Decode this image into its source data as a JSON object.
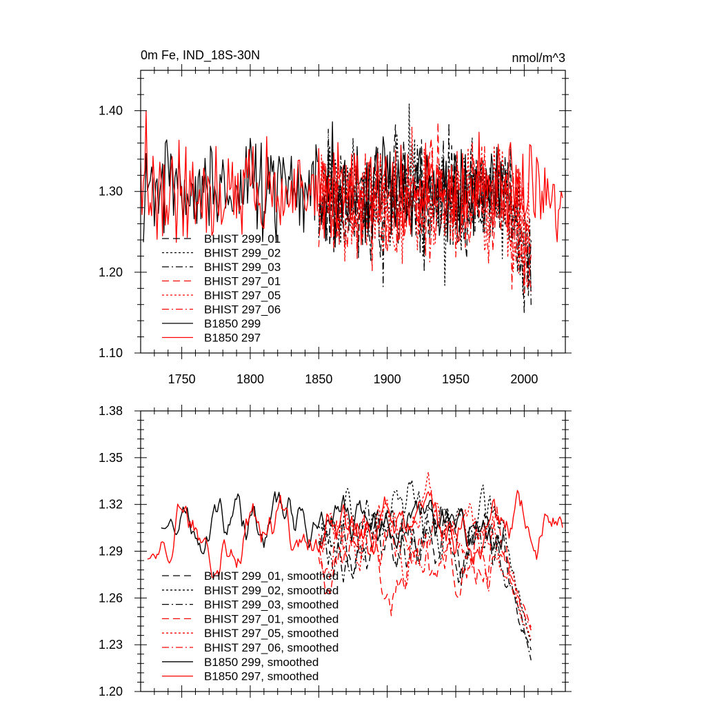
{
  "figure": {
    "title_left": "0m Fe, IND_18S-30N",
    "title_right": "nmol/m^3"
  },
  "chart_data": [
    {
      "type": "line",
      "title": "0m Fe, IND_18S-30N",
      "units": "nmol/m^3",
      "xlim": [
        1720,
        2030
      ],
      "ylim": [
        1.1,
        1.45
      ],
      "xticks": [
        1750,
        1800,
        1850,
        1900,
        1950,
        2000
      ],
      "xtick_labels": [
        "1750",
        "1800",
        "1850",
        "1900",
        "1950",
        "2000"
      ],
      "yticks": [
        1.1,
        1.2,
        1.3,
        1.4
      ],
      "ytick_labels": [
        "1.10",
        "1.20",
        "1.30",
        "1.40"
      ],
      "legend_position": "lower-left",
      "series": [
        {
          "name": "BHIST 299_01",
          "color": "#000000",
          "dash": "dashed",
          "x_start": 1850,
          "x_end": 2005,
          "mean": 1.29,
          "amp": 0.042,
          "seed": 11
        },
        {
          "name": "BHIST 299_02",
          "color": "#000000",
          "dash": "dotted",
          "x_start": 1850,
          "x_end": 2005,
          "mean": 1.3,
          "amp": 0.042,
          "seed": 12
        },
        {
          "name": "BHIST 299_03",
          "color": "#000000",
          "dash": "dashdot",
          "x_start": 1850,
          "x_end": 2005,
          "mean": 1.29,
          "amp": 0.04,
          "seed": 13
        },
        {
          "name": "BHIST 297_01",
          "color": "#ff0000",
          "dash": "dashed",
          "x_start": 1850,
          "x_end": 2005,
          "mean": 1.29,
          "amp": 0.042,
          "seed": 21
        },
        {
          "name": "BHIST 297_05",
          "color": "#ff0000",
          "dash": "dotted",
          "x_start": 1850,
          "x_end": 2005,
          "mean": 1.29,
          "amp": 0.042,
          "seed": 22
        },
        {
          "name": "BHIST 297_06",
          "color": "#ff0000",
          "dash": "dashdot",
          "x_start": 1850,
          "x_end": 2005,
          "mean": 1.29,
          "amp": 0.04,
          "seed": 23
        },
        {
          "name": "B1850 299",
          "color": "#000000",
          "dash": "solid",
          "x_start": 1722,
          "x_end": 1985,
          "mean": 1.305,
          "amp": 0.038,
          "seed": 31
        },
        {
          "name": "B1850 297",
          "color": "#ff0000",
          "dash": "solid",
          "x_start": 1720,
          "x_end": 2028,
          "mean": 1.3,
          "amp": 0.036,
          "seed": 41
        }
      ]
    },
    {
      "type": "line",
      "title": "",
      "xlim": [
        1720,
        2030
      ],
      "ylim": [
        1.2,
        1.38
      ],
      "xticks": [
        1750,
        1800,
        1850,
        1900,
        1950,
        2000
      ],
      "xtick_labels": [],
      "yticks": [
        1.2,
        1.23,
        1.26,
        1.29,
        1.32,
        1.35,
        1.38
      ],
      "ytick_labels": [
        "1.20",
        "1.23",
        "1.26",
        "1.29",
        "1.32",
        "1.35",
        "1.38"
      ],
      "legend_position": "lower-left",
      "series": [
        {
          "name": "BHIST 299_01, smoothed",
          "color": "#000000",
          "dash": "dashed",
          "x_start": 1850,
          "x_end": 2005,
          "mean": 1.3,
          "amp": 0.014,
          "end_value": 1.225,
          "seed": 111
        },
        {
          "name": "BHIST 299_02, smoothed",
          "color": "#000000",
          "dash": "dotted",
          "x_start": 1850,
          "x_end": 2005,
          "mean": 1.31,
          "amp": 0.014,
          "end_value": 1.23,
          "seed": 112
        },
        {
          "name": "BHIST 299_03, smoothed",
          "color": "#000000",
          "dash": "dashdot",
          "x_start": 1850,
          "x_end": 2005,
          "mean": 1.3,
          "amp": 0.013,
          "end_value": 1.218,
          "seed": 113
        },
        {
          "name": "BHIST 297_01, smoothed",
          "color": "#ff0000",
          "dash": "dashed",
          "x_start": 1850,
          "x_end": 2005,
          "mean": 1.29,
          "amp": 0.014,
          "end_value": 1.24,
          "seed": 121
        },
        {
          "name": "BHIST 297_05, smoothed",
          "color": "#ff0000",
          "dash": "dotted",
          "x_start": 1850,
          "x_end": 2005,
          "mean": 1.305,
          "amp": 0.014,
          "end_value": 1.232,
          "seed": 122
        },
        {
          "name": "BHIST 297_06, smoothed",
          "color": "#ff0000",
          "dash": "dashdot",
          "x_start": 1850,
          "x_end": 2005,
          "mean": 1.295,
          "amp": 0.013,
          "end_value": 1.238,
          "seed": 123
        },
        {
          "name": "B1850 299, smoothed",
          "color": "#000000",
          "dash": "solid",
          "x_start": 1735,
          "x_end": 1985,
          "mean": 1.31,
          "amp": 0.011,
          "start_value": 1.305,
          "seed": 131
        },
        {
          "name": "B1850 297, smoothed",
          "color": "#ff0000",
          "dash": "solid",
          "x_start": 1725,
          "x_end": 2028,
          "mean": 1.305,
          "amp": 0.012,
          "start_value": 1.285,
          "seed": 141
        }
      ]
    }
  ]
}
